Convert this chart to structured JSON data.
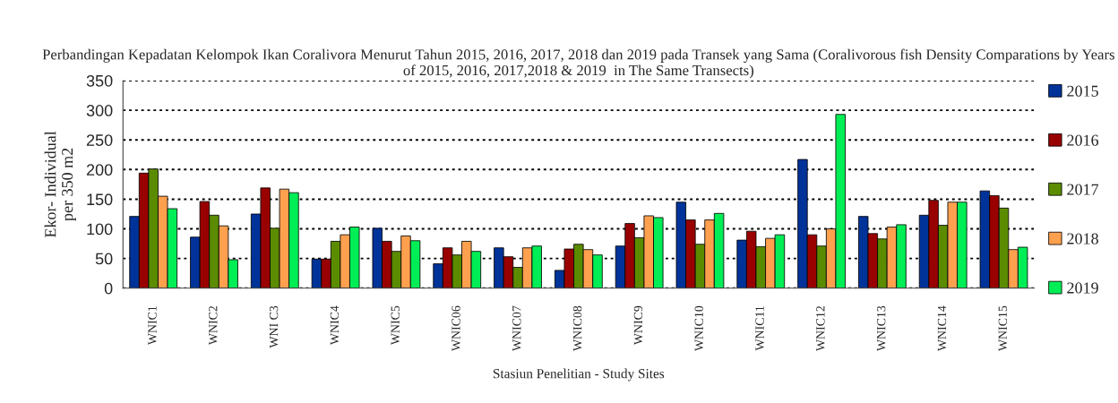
{
  "chart_data": {
    "type": "bar",
    "title": "Perbandingan Kepadatan Kelompok Ikan Coralivora Menurut Tahun 2015, 2016, 2017, 2018 dan 2019 pada Transek yang Sama (Coralivorous fish Density Comparations by Years of 2015, 2016, 2017,2018 & 2019  in The Same Transects)",
    "xlabel": "Stasiun Penelitian - Study Sites",
    "ylabel": "Ekor- Individual\nper 350 m2",
    "categories": [
      "WNIC1",
      "WNIC2",
      "WNI C3",
      "WNIC4",
      "WNIC5",
      "WNIC06",
      "WNIC07",
      "WNIC08",
      "WNIC9",
      "WNIC10",
      "WNIC11",
      "WNIC12",
      "WNIC13",
      "WNIC14",
      "WNIC15"
    ],
    "series": [
      {
        "name": "2015",
        "color": "#003399",
        "values": [
          121,
          86,
          125,
          49,
          101,
          41,
          68,
          30,
          71,
          145,
          81,
          217,
          121,
          123,
          164
        ]
      },
      {
        "name": "2016",
        "color": "#990000",
        "values": [
          194,
          146,
          169,
          49,
          79,
          68,
          53,
          66,
          109,
          115,
          96,
          90,
          92,
          148,
          156
        ]
      },
      {
        "name": "2017",
        "color": "#5b8c00",
        "values": [
          201,
          123,
          101,
          79,
          62,
          56,
          35,
          74,
          85,
          74,
          70,
          71,
          83,
          106,
          135
        ]
      },
      {
        "name": "2018",
        "color": "#ffa04f",
        "values": [
          155,
          105,
          167,
          90,
          88,
          79,
          68,
          65,
          122,
          115,
          84,
          100,
          103,
          145,
          65
        ]
      },
      {
        "name": "2019",
        "color": "#00ee55",
        "values": [
          134,
          48,
          161,
          103,
          80,
          62,
          71,
          56,
          119,
          126,
          90,
          293,
          107,
          145,
          69
        ]
      }
    ],
    "ylim": [
      0,
      350
    ],
    "yticks": [
      0,
      50,
      100,
      150,
      200,
      250,
      300,
      350
    ],
    "grid": "y",
    "legend": "right"
  }
}
